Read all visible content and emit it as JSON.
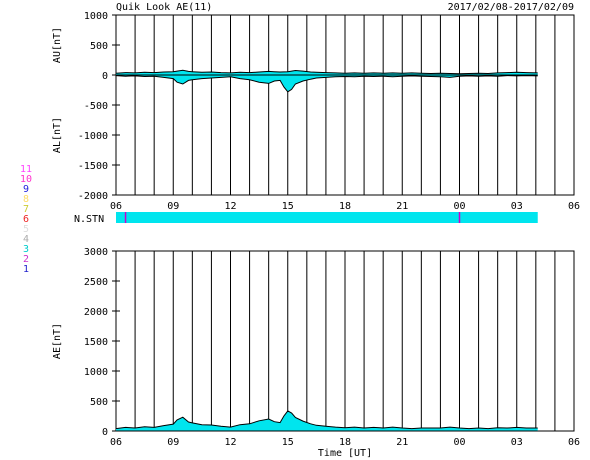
{
  "header": {
    "title": "Quik Look AE(11)",
    "date_range": "2017/02/08-2017/02/09"
  },
  "colors": {
    "fill": "#00e5ee",
    "line": "#000000",
    "grid": "#000000",
    "station_marker": "#cc00cc"
  },
  "station_legend": {
    "items": [
      {
        "label": "11",
        "color": "#ff44ff"
      },
      {
        "label": "10",
        "color": "#ff33cc"
      },
      {
        "label": "9",
        "color": "#2222dd"
      },
      {
        "label": "8",
        "color": "#ffdd66"
      },
      {
        "label": "7",
        "color": "#cccc33"
      },
      {
        "label": "6",
        "color": "#ee2222"
      },
      {
        "label": "5",
        "color": "#dddddd"
      },
      {
        "label": "4",
        "color": "#aaaaaa"
      },
      {
        "label": "3",
        "color": "#00cccc"
      },
      {
        "label": "2",
        "color": "#cc33cc"
      },
      {
        "label": "1",
        "color": "#2222cc"
      }
    ]
  },
  "chart_data": [
    {
      "type": "area",
      "name": "AU/AL panel",
      "ylabel_upper": "AU[nT]",
      "ylabel_lower": "AL[nT]",
      "ylim": [
        -2000,
        1000
      ],
      "yticks": [
        1000,
        500,
        0,
        -500,
        -1000,
        -1500,
        -2000
      ],
      "xlim_hours": [
        6,
        30
      ],
      "xtick_labels": [
        "06",
        "09",
        "12",
        "15",
        "18",
        "21",
        "00",
        "03",
        "06"
      ],
      "grid": "vertical-hourly",
      "data_end_hour": 28.1,
      "series": [
        {
          "name": "AU",
          "x_hours": [
            6.0,
            6.5,
            7.0,
            7.5,
            8.0,
            8.5,
            9.0,
            9.2,
            9.5,
            9.8,
            10.0,
            10.5,
            11.0,
            11.5,
            12.0,
            12.5,
            13.0,
            13.5,
            14.0,
            14.3,
            14.6,
            15.0,
            15.4,
            15.8,
            16.2,
            16.5,
            17.0,
            17.5,
            18.0,
            18.5,
            19.0,
            19.5,
            20.0,
            20.5,
            21.0,
            21.5,
            22.0,
            22.5,
            23.0,
            23.5,
            24.0,
            24.5,
            25.0,
            25.5,
            26.0,
            26.5,
            27.0,
            27.5,
            28.1
          ],
          "values": [
            30,
            40,
            35,
            45,
            40,
            50,
            55,
            65,
            80,
            60,
            55,
            45,
            50,
            40,
            35,
            45,
            40,
            50,
            60,
            55,
            50,
            55,
            75,
            65,
            50,
            45,
            40,
            35,
            30,
            35,
            30,
            35,
            30,
            35,
            30,
            35,
            30,
            25,
            30,
            25,
            20,
            25,
            30,
            25,
            35,
            40,
            45,
            40,
            35
          ]
        },
        {
          "name": "AL",
          "x_hours": [
            6.0,
            6.5,
            7.0,
            7.5,
            8.0,
            8.5,
            9.0,
            9.2,
            9.5,
            9.8,
            10.0,
            10.5,
            11.0,
            11.5,
            12.0,
            12.5,
            13.0,
            13.5,
            14.0,
            14.3,
            14.6,
            14.8,
            15.0,
            15.2,
            15.4,
            15.8,
            16.2,
            16.5,
            17.0,
            17.5,
            18.0,
            18.5,
            19.0,
            19.5,
            20.0,
            20.5,
            21.0,
            21.5,
            22.0,
            22.5,
            23.0,
            23.5,
            24.0,
            24.5,
            25.0,
            25.5,
            26.0,
            26.5,
            27.0,
            27.5,
            28.1
          ],
          "values": [
            -10,
            -20,
            -15,
            -25,
            -20,
            -40,
            -60,
            -120,
            -150,
            -90,
            -80,
            -60,
            -50,
            -40,
            -30,
            -60,
            -80,
            -120,
            -140,
            -100,
            -90,
            -200,
            -280,
            -240,
            -150,
            -100,
            -70,
            -50,
            -40,
            -30,
            -25,
            -30,
            -20,
            -25,
            -20,
            -30,
            -20,
            -15,
            -20,
            -25,
            -30,
            -40,
            -20,
            -15,
            -20,
            -15,
            -20,
            -10,
            -15,
            -10,
            -15
          ]
        }
      ]
    },
    {
      "type": "band",
      "name": "N.STN",
      "label": "N.STN",
      "xlim_hours": [
        6,
        30
      ],
      "data_end_hour": 28.1,
      "markers_hours": [
        6.5,
        24.0
      ]
    },
    {
      "type": "area",
      "name": "AE panel",
      "ylabel": "AE[nT]",
      "xlabel": "Time [UT]",
      "ylim": [
        0,
        3000
      ],
      "yticks": [
        3000,
        2500,
        2000,
        1500,
        1000,
        500,
        0
      ],
      "xlim_hours": [
        6,
        30
      ],
      "xtick_labels": [
        "06",
        "09",
        "12",
        "15",
        "18",
        "21",
        "00",
        "03",
        "06"
      ],
      "grid": "vertical-hourly",
      "data_end_hour": 28.1,
      "series": [
        {
          "name": "AE",
          "x_hours": [
            6.0,
            6.5,
            7.0,
            7.5,
            8.0,
            8.5,
            9.0,
            9.2,
            9.5,
            9.8,
            10.0,
            10.5,
            11.0,
            11.5,
            12.0,
            12.5,
            13.0,
            13.5,
            14.0,
            14.3,
            14.6,
            14.8,
            15.0,
            15.2,
            15.4,
            15.8,
            16.2,
            16.5,
            17.0,
            17.5,
            18.0,
            18.5,
            19.0,
            19.5,
            20.0,
            20.5,
            21.0,
            21.5,
            22.0,
            22.5,
            23.0,
            23.5,
            24.0,
            24.5,
            25.0,
            25.5,
            26.0,
            26.5,
            27.0,
            27.5,
            28.1
          ],
          "values": [
            40,
            60,
            50,
            70,
            60,
            90,
            115,
            185,
            230,
            150,
            135,
            105,
            100,
            80,
            65,
            105,
            120,
            170,
            200,
            155,
            140,
            250,
            335,
            300,
            225,
            165,
            120,
            95,
            80,
            65,
            55,
            65,
            50,
            60,
            50,
            65,
            50,
            40,
            50,
            50,
            50,
            65,
            50,
            40,
            50,
            40,
            55,
            50,
            60,
            50,
            50
          ]
        }
      ]
    }
  ]
}
